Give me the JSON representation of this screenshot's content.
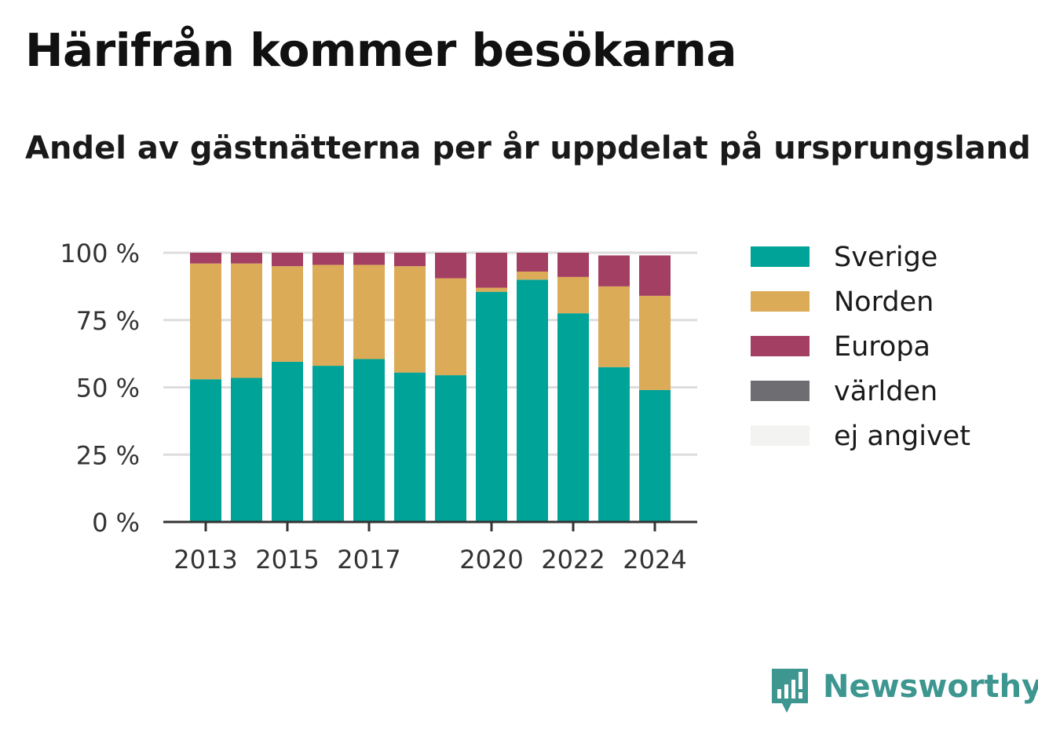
{
  "title": "Härifrån kommer besökarna",
  "subtitle": "Andel av gästnätterna per år uppdelat på ursprungsland",
  "brand": "Newsworthy",
  "colors": {
    "Sverige": "#00a398",
    "Norden": "#dbab57",
    "Europa": "#a43f64",
    "världen": "#6e6d72",
    "ej angivet": "#f3f3f1",
    "grid": "#dddddd",
    "axis": "#333333",
    "brand": "#3d9690"
  },
  "chart_data": {
    "type": "bar",
    "stacked": true,
    "categories": [
      "2013",
      "2014",
      "2015",
      "2016",
      "2017",
      "2018",
      "2019",
      "2020",
      "2021",
      "2022",
      "2023",
      "2024"
    ],
    "x_tick_labels": [
      "2013",
      "2015",
      "2017",
      "2020",
      "2022",
      "2024"
    ],
    "y_tick_labels": [
      "0 %",
      "25 %",
      "50 %",
      "75 %",
      "100 %"
    ],
    "y_ticks": [
      0,
      25,
      50,
      75,
      100
    ],
    "ylim": [
      0,
      100
    ],
    "grid": true,
    "legend_position": "right",
    "series": [
      {
        "name": "Sverige",
        "values": [
          53,
          53.5,
          59.5,
          58,
          60.5,
          55.5,
          54.5,
          85.5,
          90,
          77.5,
          57.5,
          49
        ]
      },
      {
        "name": "Norden",
        "values": [
          43,
          42.5,
          35.5,
          37.5,
          35,
          39.5,
          36,
          1.5,
          3,
          13.5,
          30,
          35
        ]
      },
      {
        "name": "Europa",
        "values": [
          4,
          4,
          5,
          4.5,
          4.5,
          5,
          9.5,
          13,
          7,
          9,
          11.5,
          15
        ]
      },
      {
        "name": "världen",
        "values": [
          0,
          0,
          0,
          0,
          0,
          0,
          0,
          0,
          0,
          0,
          0,
          0
        ]
      },
      {
        "name": "ej angivet",
        "values": [
          0,
          0,
          0,
          0,
          0,
          0,
          0,
          0,
          0,
          0,
          0,
          0
        ]
      }
    ]
  }
}
